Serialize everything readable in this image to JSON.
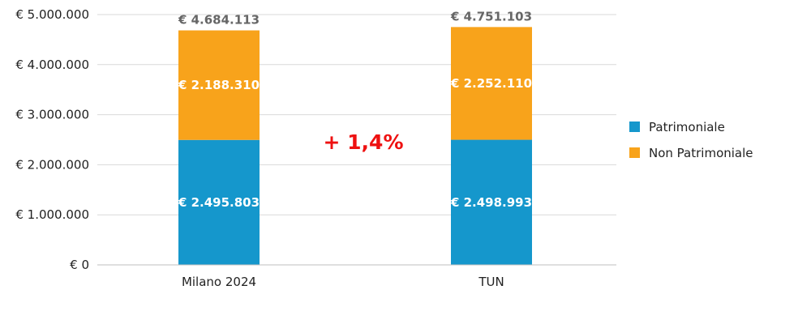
{
  "chart_data": {
    "type": "bar",
    "stacked": true,
    "categories": [
      "Milano 2024",
      "TUN"
    ],
    "series": [
      {
        "name": "Patrimoniale",
        "color": "#1597cc",
        "values": [
          2495803,
          2498993
        ],
        "labels": [
          "€ 2.495.803",
          "€ 2.498.993"
        ]
      },
      {
        "name": "Non Patrimoniale",
        "color": "#f8a31b",
        "values": [
          2188310,
          2252110
        ],
        "labels": [
          "€ 2.188.310",
          "€ 2.252.110"
        ]
      }
    ],
    "totals": [
      4684113,
      4751103
    ],
    "total_labels": [
      "€ 4.684.113",
      "€ 4.751.103"
    ],
    "annotation": "+ 1,4%",
    "annotation_color": "#ee1111",
    "ylim": [
      0,
      5000000
    ],
    "yticks": [
      0,
      1000000,
      2000000,
      3000000,
      4000000,
      5000000
    ],
    "ytick_labels": [
      "€ 0",
      "€ 1.000.000",
      "€ 2.000.000",
      "€ 3.000.000",
      "€ 4.000.000",
      "€ 5.000.000"
    ],
    "grid": true,
    "legend_position": "right"
  }
}
